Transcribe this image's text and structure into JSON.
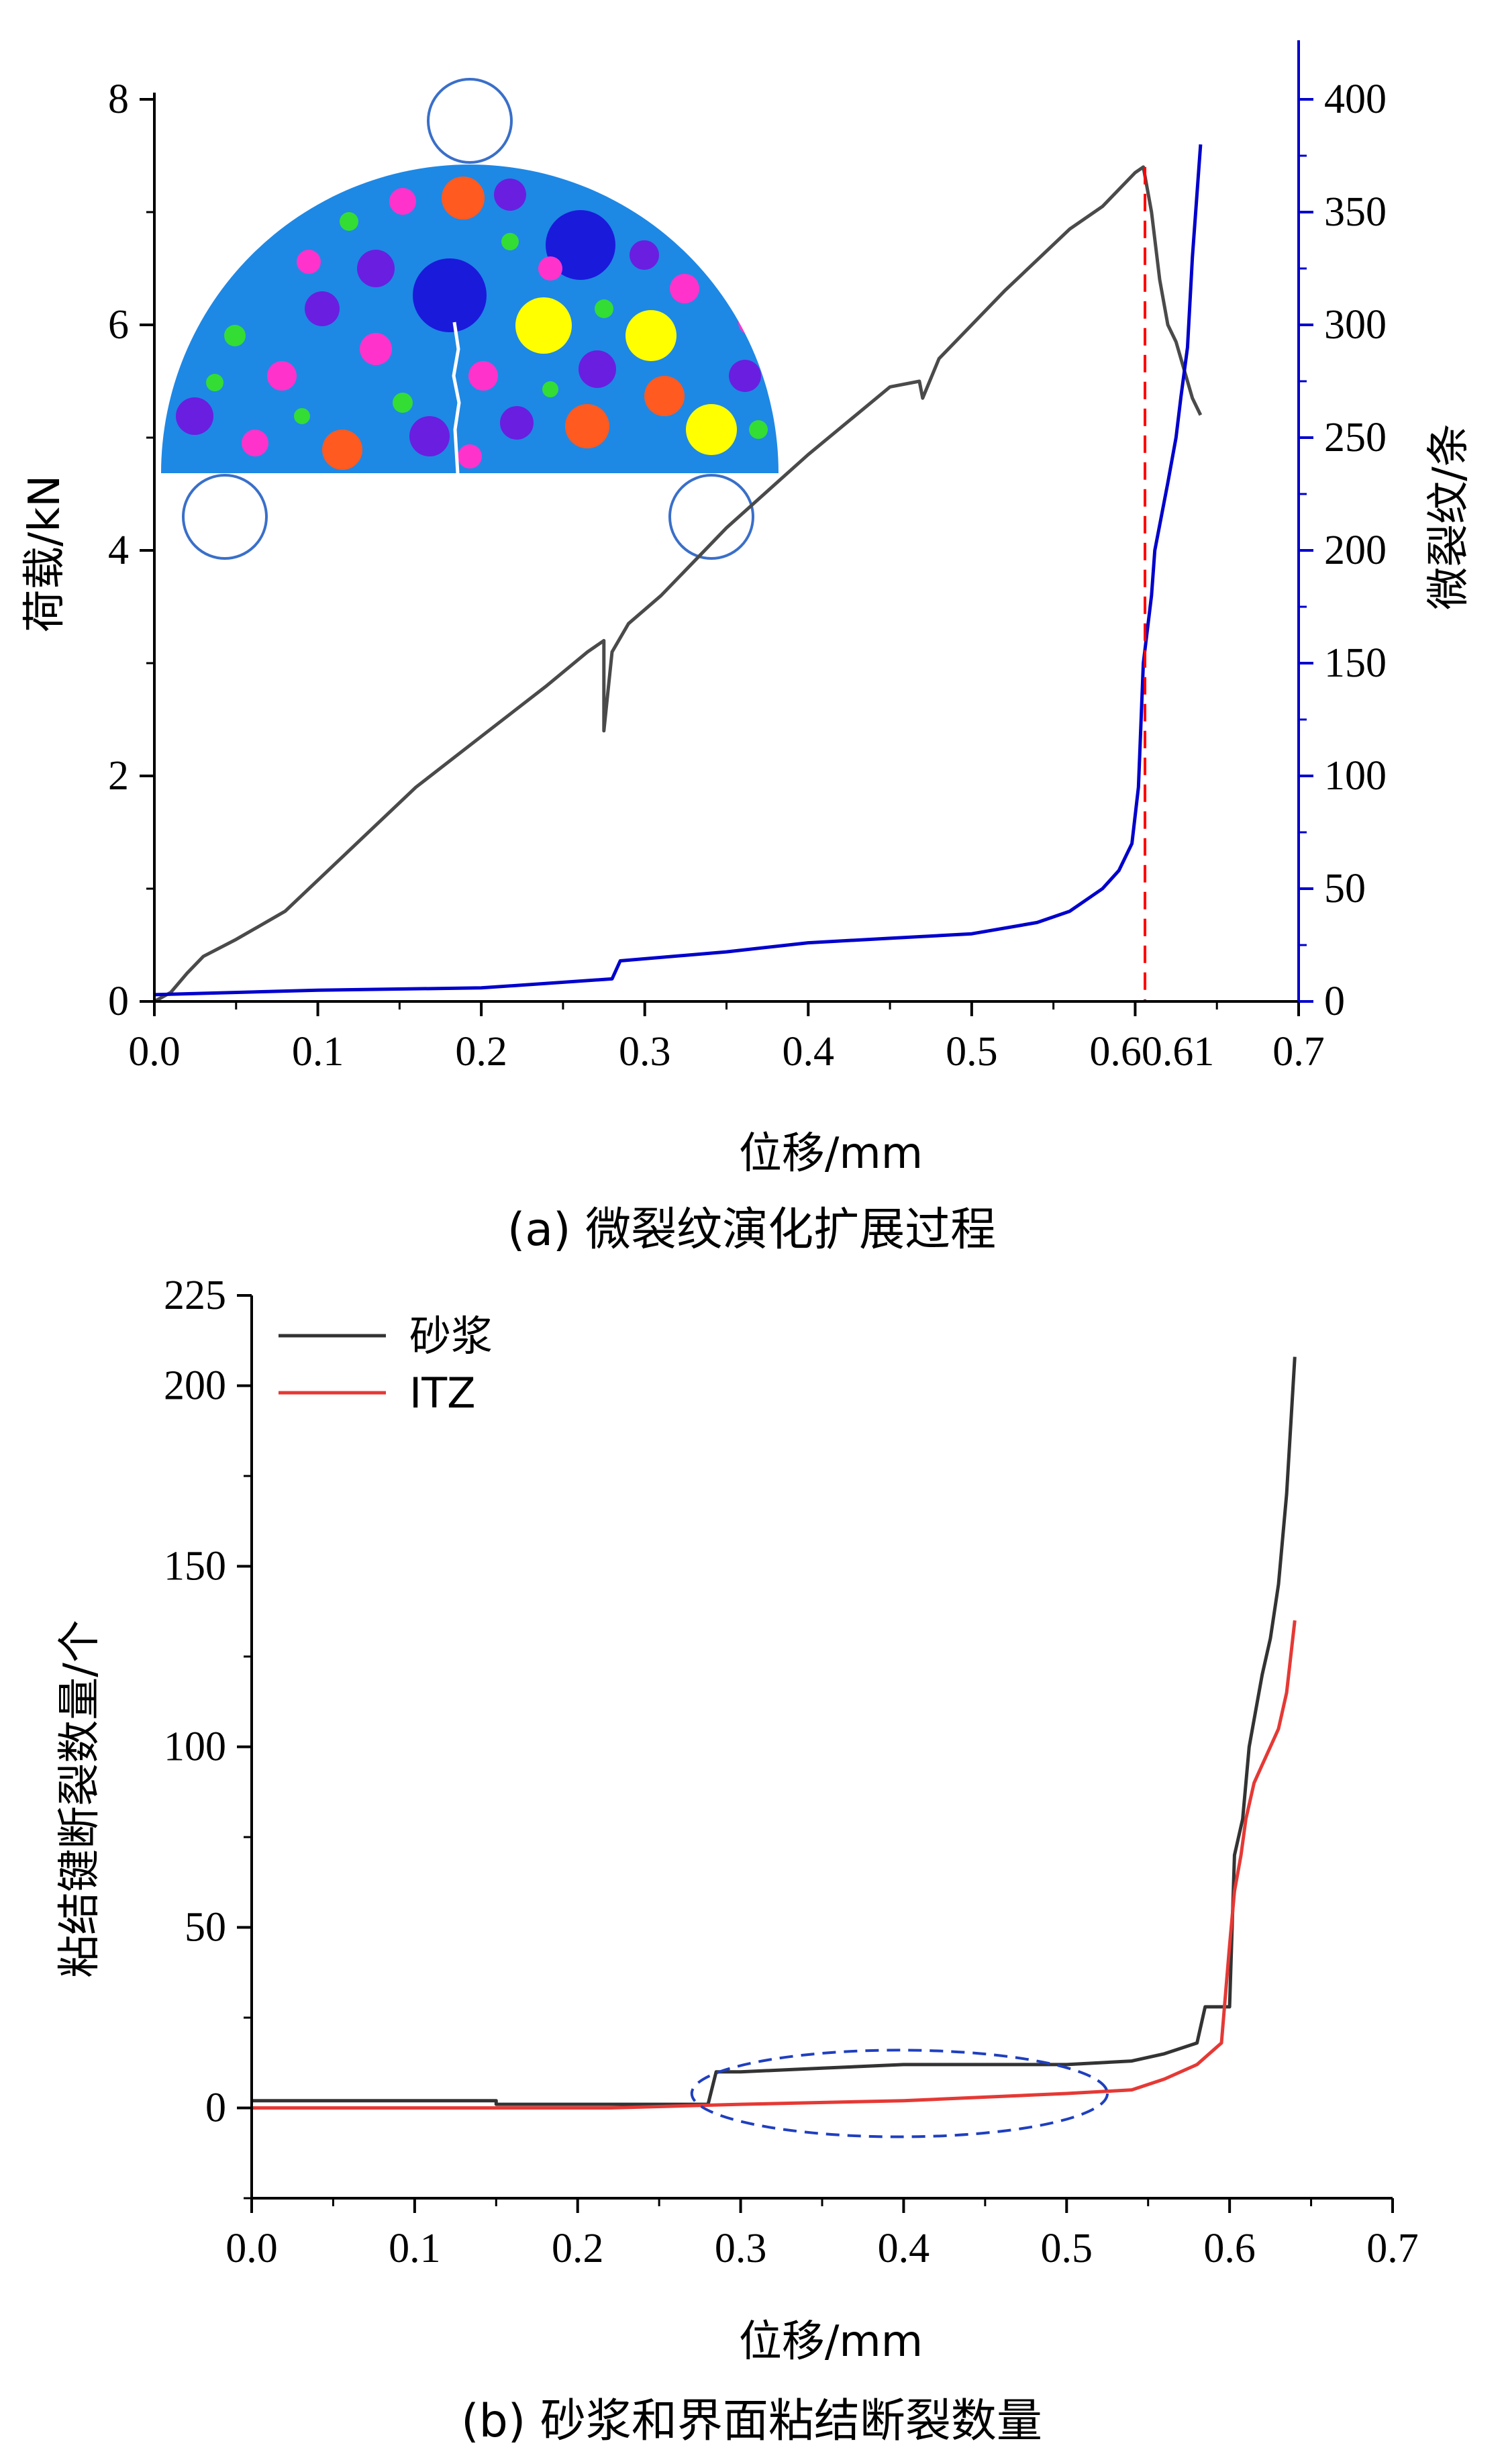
{
  "chart_data": [
    {
      "type": "line",
      "caption": "(a) 微裂纹演化扩展过程",
      "xlabel": "位移/mm",
      "ylabel": "荷载/kN",
      "y2label": "微裂纹/条",
      "xlim": [
        0,
        0.7
      ],
      "ylim": [
        0,
        8
      ],
      "y2lim": [
        0,
        400
      ],
      "x_ticks": [
        "0.0",
        "0.1",
        "0.2",
        "0.3",
        "0.4",
        "0.5",
        "0.60.61",
        "0.7"
      ],
      "x_tick_values": [
        0,
        0.1,
        0.2,
        0.3,
        0.4,
        0.5,
        0.6,
        0.7
      ],
      "y_ticks": [
        "0",
        "2",
        "4",
        "6",
        "8"
      ],
      "y_tick_values": [
        0,
        2,
        4,
        6,
        8
      ],
      "y2_ticks": [
        "0",
        "50",
        "100",
        "150",
        "200",
        "250",
        "300",
        "350",
        "400"
      ],
      "y2_tick_values": [
        0,
        50,
        100,
        150,
        200,
        250,
        300,
        350,
        400
      ],
      "series": [
        {
          "axis": "left",
          "color": "#4a4a4a",
          "x": [
            0,
            0.01,
            0.02,
            0.03,
            0.05,
            0.08,
            0.12,
            0.16,
            0.2,
            0.24,
            0.265,
            0.275,
            0.275,
            0.28,
            0.29,
            0.31,
            0.35,
            0.4,
            0.45,
            0.468,
            0.47,
            0.48,
            0.52,
            0.56,
            0.58,
            0.6,
            0.605,
            0.61,
            0.615,
            0.62,
            0.625,
            0.63,
            0.635,
            0.64
          ],
          "values": [
            0,
            0.08,
            0.25,
            0.4,
            0.55,
            0.8,
            1.35,
            1.9,
            2.35,
            2.8,
            3.1,
            3.2,
            2.4,
            3.1,
            3.35,
            3.6,
            4.2,
            4.85,
            5.45,
            5.5,
            5.35,
            5.7,
            6.3,
            6.85,
            7.05,
            7.35,
            7.4,
            7.0,
            6.4,
            6.0,
            5.85,
            5.6,
            5.35,
            5.2
          ]
        },
        {
          "axis": "right",
          "color": "#0000cc",
          "x": [
            0,
            0.1,
            0.2,
            0.28,
            0.285,
            0.35,
            0.4,
            0.45,
            0.5,
            0.54,
            0.56,
            0.58,
            0.59,
            0.598,
            0.602,
            0.605,
            0.61,
            0.612,
            0.62,
            0.625,
            0.628,
            0.632,
            0.635,
            0.64
          ],
          "values": [
            3,
            5,
            6,
            10,
            18,
            22,
            26,
            28,
            30,
            35,
            40,
            50,
            58,
            70,
            95,
            150,
            180,
            200,
            230,
            250,
            268,
            290,
            330,
            380
          ]
        }
      ],
      "peak_marker": {
        "x": 0.606,
        "color": "#ff0000"
      }
    },
    {
      "type": "line",
      "caption": "(b) 砂浆和界面粘结断裂数量",
      "xlabel": "位移/mm",
      "ylabel": "粘结键断裂数量/个",
      "xlim": [
        0,
        0.7
      ],
      "ylim": [
        -25,
        225
      ],
      "x_ticks": [
        "0.0",
        "0.1",
        "0.2",
        "0.3",
        "0.4",
        "0.5",
        "0.6",
        "0.7"
      ],
      "x_tick_values": [
        0,
        0.1,
        0.2,
        0.3,
        0.4,
        0.5,
        0.6,
        0.7
      ],
      "y_ticks": [
        "0",
        "50",
        "100",
        "150",
        "200",
        "225"
      ],
      "y_tick_values": [
        0,
        50,
        100,
        150,
        200,
        225
      ],
      "series": [
        {
          "name": "砂浆",
          "color": "#333333",
          "x": [
            0,
            0.15,
            0.15,
            0.22,
            0.22,
            0.28,
            0.285,
            0.3,
            0.35,
            0.4,
            0.45,
            0.5,
            0.54,
            0.56,
            0.58,
            0.585,
            0.6,
            0.603,
            0.608,
            0.612,
            0.62,
            0.625,
            0.63,
            0.635,
            0.64
          ],
          "values": [
            2,
            2,
            1,
            1,
            1,
            1,
            10,
            10,
            11,
            12,
            12,
            12,
            13,
            15,
            18,
            28,
            28,
            70,
            80,
            100,
            120,
            130,
            145,
            170,
            208
          ]
        },
        {
          "name": "ITZ",
          "color": "#e53935",
          "x": [
            0,
            0.22,
            0.3,
            0.4,
            0.45,
            0.5,
            0.54,
            0.56,
            0.58,
            0.595,
            0.6,
            0.603,
            0.607,
            0.61,
            0.615,
            0.62,
            0.625,
            0.63,
            0.635,
            0.64
          ],
          "values": [
            0,
            0,
            1,
            2,
            3,
            4,
            5,
            8,
            12,
            18,
            45,
            60,
            70,
            80,
            90,
            95,
            100,
            105,
            115,
            135
          ]
        }
      ],
      "annotation": {
        "shape": "ellipse",
        "style": "dashed",
        "color": "#1f3fbf",
        "x_range": [
          0.27,
          0.525
        ],
        "y_range": [
          -8,
          16
        ]
      }
    }
  ]
}
